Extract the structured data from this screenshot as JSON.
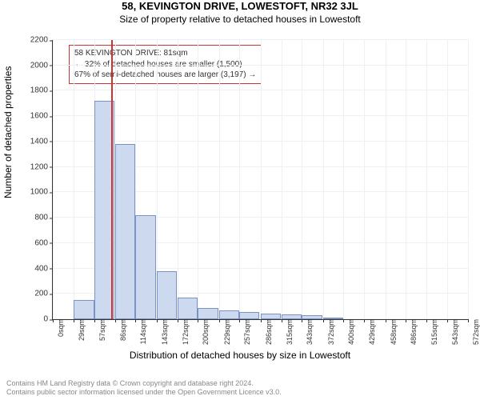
{
  "header": {
    "address": "58, KEVINGTON DRIVE, LOWESTOFT, NR32 3JL",
    "subtitle": "Size of property relative to detached houses in Lowestoft"
  },
  "chart": {
    "type": "histogram",
    "ylabel": "Number of detached properties",
    "xlabel": "Distribution of detached houses by size in Lowestoft",
    "ylim": [
      0,
      2200
    ],
    "ytick_step": 200,
    "yticks": [
      0,
      200,
      400,
      600,
      800,
      1000,
      1200,
      1400,
      1600,
      1800,
      2000,
      2200
    ],
    "xticks": [
      "0sqm",
      "29sqm",
      "57sqm",
      "86sqm",
      "114sqm",
      "143sqm",
      "172sqm",
      "200sqm",
      "229sqm",
      "257sqm",
      "286sqm",
      "315sqm",
      "343sqm",
      "372sqm",
      "400sqm",
      "429sqm",
      "458sqm",
      "486sqm",
      "515sqm",
      "543sqm",
      "572sqm"
    ],
    "x_max_sqm": 572,
    "bars": [
      {
        "x_sqm": 29,
        "count": 150
      },
      {
        "x_sqm": 57,
        "count": 1720
      },
      {
        "x_sqm": 86,
        "count": 1380
      },
      {
        "x_sqm": 114,
        "count": 820
      },
      {
        "x_sqm": 143,
        "count": 380
      },
      {
        "x_sqm": 172,
        "count": 170
      },
      {
        "x_sqm": 200,
        "count": 90
      },
      {
        "x_sqm": 229,
        "count": 70
      },
      {
        "x_sqm": 257,
        "count": 55
      },
      {
        "x_sqm": 286,
        "count": 45
      },
      {
        "x_sqm": 315,
        "count": 35
      },
      {
        "x_sqm": 343,
        "count": 30
      },
      {
        "x_sqm": 372,
        "count": 15
      }
    ],
    "bar_fill": "#cdd9ee",
    "bar_stroke": "#7a93c4",
    "grid_color": "#eef0f5",
    "axis_color": "#333333",
    "background_color": "#ffffff",
    "marker": {
      "sqm": 81,
      "color": "#cc3333"
    },
    "callout": {
      "line1": "58 KEVINGTON DRIVE: 81sqm",
      "line2": "← 32% of detached houses are smaller (1,500)",
      "line3": "67% of semi-detached houses are larger (3,197) →",
      "border_color": "#cc3333",
      "top_sqm_anchor": 81
    },
    "bin_width_sqm": 29
  },
  "footer": {
    "line1": "Contains HM Land Registry data © Crown copyright and database right 2024.",
    "line2": "Contains public sector information licensed under the Open Government Licence v3.0."
  },
  "typography": {
    "title_fontsize": 13,
    "subtitle_fontsize": 12,
    "axis_label_fontsize": 12,
    "tick_fontsize": 10,
    "xtick_fontsize": 9,
    "callout_fontsize": 10,
    "footer_fontsize": 9
  }
}
